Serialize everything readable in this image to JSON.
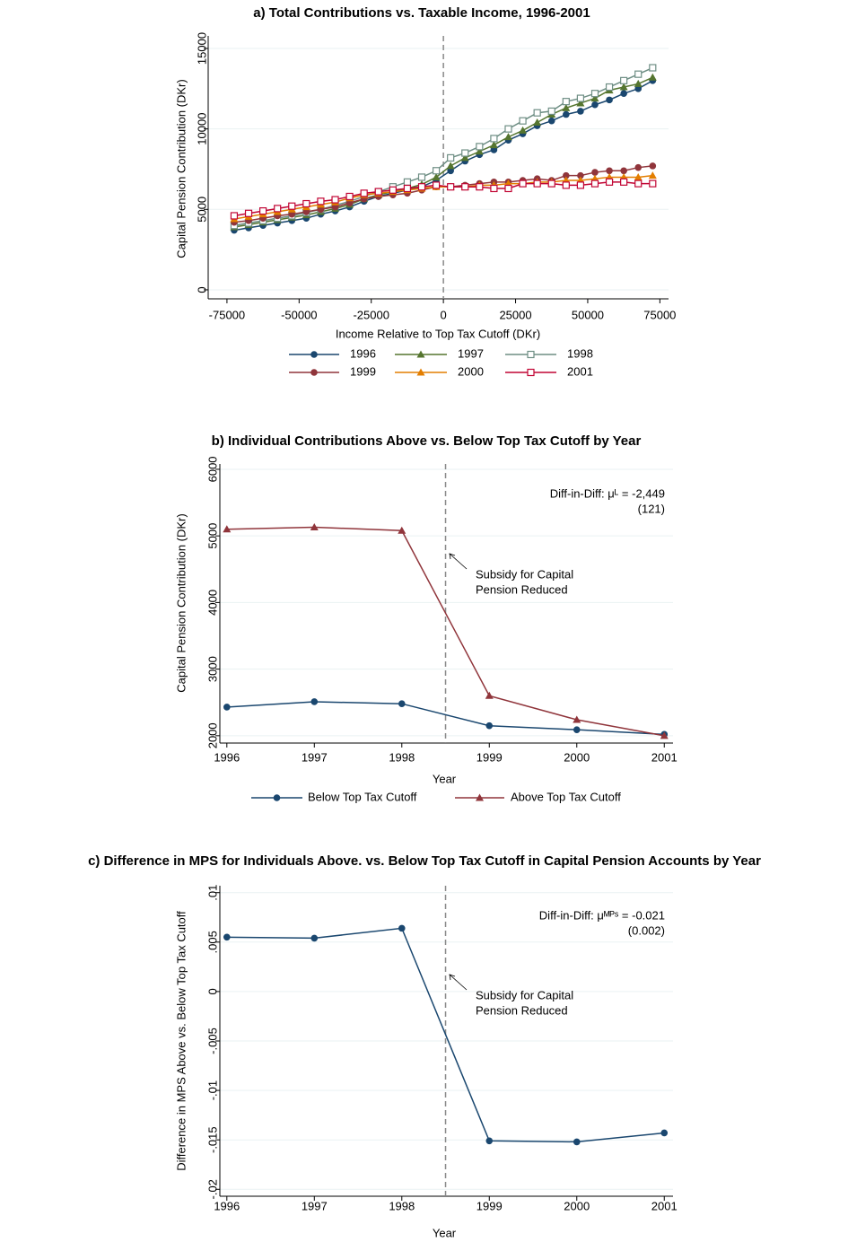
{
  "chart_data": [
    {
      "type": "line",
      "title": "a) Total Contributions vs. Taxable Income, 1996-2001",
      "x_label": "Income Relative to Top Tax Cutoff (DKr)",
      "y_label": "Capital Pension Contribution (DKr)",
      "x": [
        -72500,
        -67500,
        -62500,
        -57500,
        -52500,
        -47500,
        -42500,
        -37500,
        -32500,
        -27500,
        -22500,
        -17500,
        -12500,
        -7500,
        -2500,
        2500,
        7500,
        12500,
        17500,
        22500,
        27500,
        32500,
        37500,
        42500,
        47500,
        52500,
        57500,
        62500,
        67500,
        72500
      ],
      "xlim": [
        -81500,
        78000
      ],
      "xticks": [
        -75000,
        -50000,
        -25000,
        0,
        25000,
        50000,
        75000
      ],
      "ylim": [
        -560,
        15780
      ],
      "yticks": [
        0,
        5000,
        10000,
        15000
      ],
      "grid": true,
      "vline": 0,
      "legend_columns": 3,
      "series": [
        {
          "name": "1996",
          "color": "#1a476f",
          "marker": "circle",
          "values": [
            3700,
            3850,
            4000,
            4150,
            4300,
            4450,
            4700,
            4900,
            5150,
            5500,
            5800,
            6000,
            6200,
            6400,
            6800,
            7400,
            8000,
            8400,
            8700,
            9300,
            9700,
            10200,
            10500,
            10900,
            11100,
            11500,
            11800,
            12200,
            12500,
            13000
          ]
        },
        {
          "name": "1997",
          "color": "#55752f",
          "marker": "triangle",
          "values": [
            3900,
            4050,
            4200,
            4350,
            4500,
            4650,
            4850,
            5050,
            5300,
            5650,
            5900,
            6100,
            6300,
            6550,
            7000,
            7700,
            8200,
            8600,
            9000,
            9500,
            9900,
            10400,
            10900,
            11300,
            11600,
            11900,
            12400,
            12600,
            12800,
            13200
          ]
        },
        {
          "name": "1998",
          "color": "#6e8e84",
          "marker": "square-hollow",
          "values": [
            4000,
            4150,
            4300,
            4450,
            4600,
            4800,
            5000,
            5250,
            5500,
            5800,
            6100,
            6400,
            6700,
            7000,
            7400,
            8200,
            8500,
            8900,
            9400,
            10000,
            10500,
            11000,
            11100,
            11700,
            11900,
            12200,
            12600,
            13000,
            13400,
            13800
          ]
        },
        {
          "name": "1999",
          "color": "#90353b",
          "marker": "circle",
          "values": [
            4200,
            4300,
            4450,
            4600,
            4700,
            4850,
            5000,
            5150,
            5400,
            5650,
            5800,
            5900,
            6000,
            6200,
            6400,
            6400,
            6500,
            6600,
            6700,
            6700,
            6800,
            6900,
            6800,
            7100,
            7100,
            7300,
            7400,
            7400,
            7600,
            7700
          ]
        },
        {
          "name": "2000",
          "color": "#e37e00",
          "marker": "triangle",
          "values": [
            4400,
            4550,
            4700,
            4850,
            5000,
            5150,
            5300,
            5450,
            5700,
            5900,
            6000,
            6100,
            6200,
            6300,
            6400,
            6400,
            6400,
            6500,
            6500,
            6600,
            6600,
            6700,
            6700,
            6800,
            6800,
            6900,
            7000,
            7000,
            7000,
            7100
          ]
        },
        {
          "name": "2001",
          "color": "#c10534",
          "marker": "square-hollow",
          "values": [
            4600,
            4750,
            4900,
            5050,
            5200,
            5350,
            5500,
            5600,
            5800,
            6000,
            6100,
            6200,
            6300,
            6400,
            6500,
            6400,
            6400,
            6400,
            6300,
            6300,
            6600,
            6600,
            6600,
            6500,
            6500,
            6600,
            6700,
            6700,
            6600,
            6600
          ]
        }
      ]
    },
    {
      "type": "line",
      "title": "b) Individual Contributions Above vs. Below Top Tax Cutoff by Year",
      "x_label": "Year",
      "y_label": "Capital Pension Contribution (DKr)",
      "x": [
        1996,
        1997,
        1998,
        1999,
        2000,
        2001
      ],
      "xlim": [
        1995.92,
        2001.1
      ],
      "xticks": [
        1996,
        1997,
        1998,
        1999,
        2000,
        2001
      ],
      "ylim": [
        1890,
        6080
      ],
      "yticks": [
        2000,
        3000,
        4000,
        5000,
        6000
      ],
      "grid": true,
      "vline": 1998.5,
      "legend_columns": 2,
      "notes": [
        "Diff-in-Diff: μᴸ = -2,449",
        "(121)"
      ],
      "event_label": [
        "Subsidy for Capital",
        "Pension Reduced"
      ],
      "series": [
        {
          "name": "Below Top Tax Cutoff",
          "color": "#1a476f",
          "marker": "circle",
          "values": [
            2430,
            2510,
            2480,
            2150,
            2090,
            2020
          ]
        },
        {
          "name": "Above Top Tax Cutoff",
          "color": "#90353b",
          "marker": "triangle",
          "values": [
            5100,
            5130,
            5080,
            2600,
            2240,
            2000
          ]
        }
      ]
    },
    {
      "type": "line",
      "title": "c) Difference in MPS for Individuals Above. vs. Below Top Tax Cutoff in Capital Pension Accounts by Year",
      "x_label": "Year",
      "y_label": "Difference in MPS Above vs. Below Top Tax Cutoff",
      "x": [
        1996,
        1997,
        1998,
        1999,
        2000,
        2001
      ],
      "xlim": [
        1995.92,
        2001.1
      ],
      "xticks": [
        1996,
        1997,
        1998,
        1999,
        2000,
        2001
      ],
      "ylim": [
        -0.0207,
        0.0107
      ],
      "yticks": [
        {
          "value": 0.01,
          "label": ".01"
        },
        {
          "value": 0.005,
          "label": ".005"
        },
        0,
        {
          "value": -0.005,
          "label": "-.005"
        },
        {
          "value": -0.01,
          "label": "-.01"
        },
        {
          "value": -0.015,
          "label": "-.015"
        },
        {
          "value": -0.02,
          "label": "-.02"
        }
      ],
      "grid": true,
      "vline": 1998.5,
      "notes": [
        "Diff-in-Diff: μᴹᴾˢ = -0.021",
        "(0.002)"
      ],
      "event_label": [
        "Subsidy for Capital",
        "Pension Reduced"
      ],
      "series": [
        {
          "color": "#1a476f",
          "marker": "circle",
          "values": [
            0.0055,
            0.0054,
            0.0064,
            -0.0151,
            -0.0152,
            -0.0143
          ]
        }
      ]
    }
  ]
}
